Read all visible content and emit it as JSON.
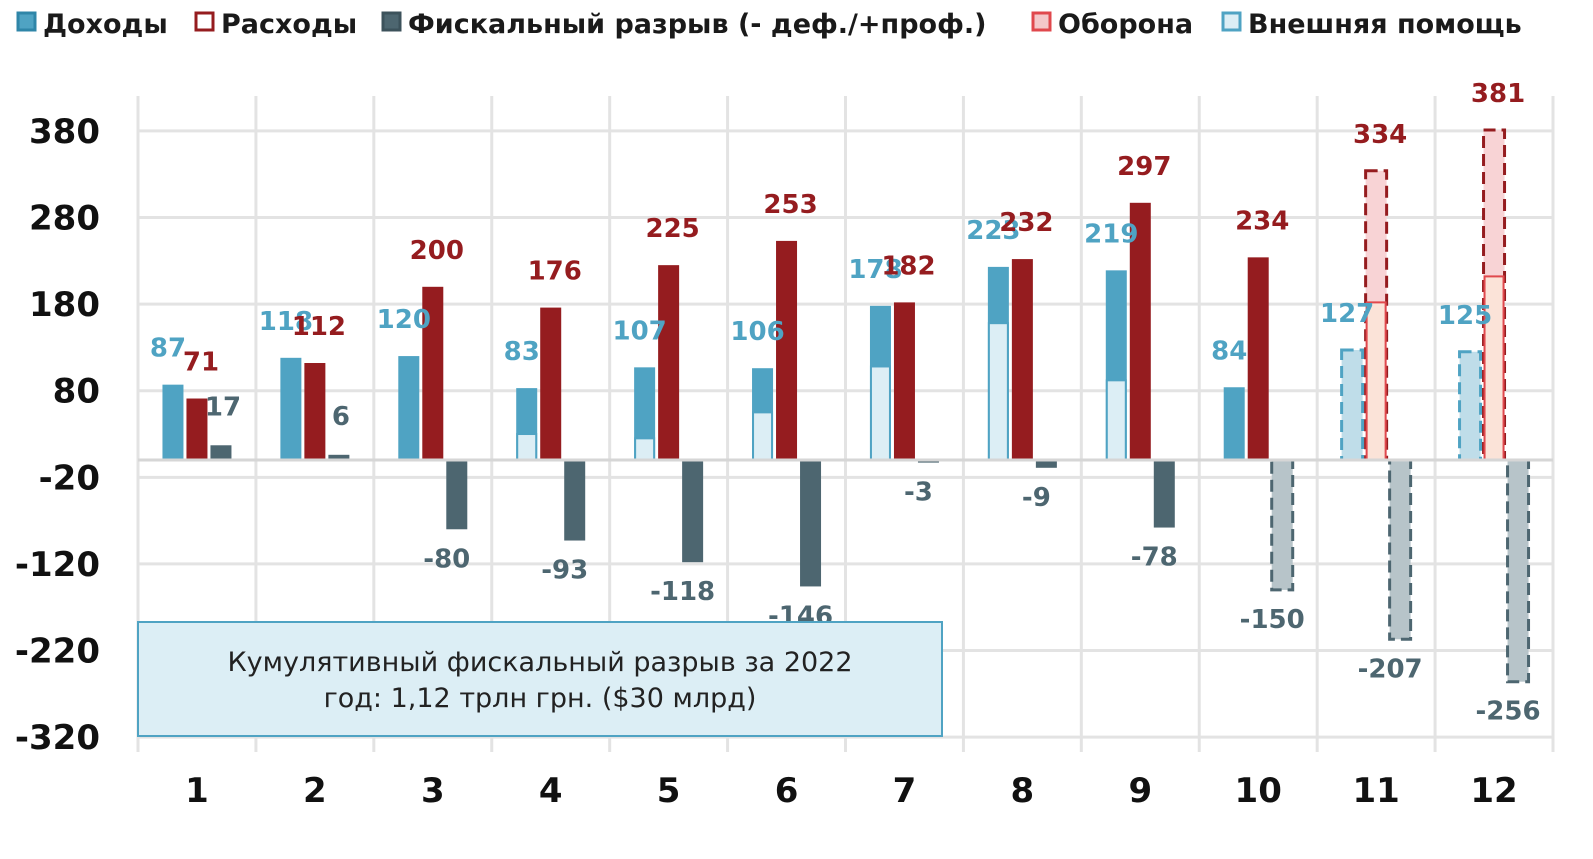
{
  "chart_data": {
    "type": "bar",
    "categories": [
      "1",
      "2",
      "3",
      "4",
      "5",
      "6",
      "7",
      "8",
      "9",
      "10",
      "11",
      "12"
    ],
    "ylim": [
      -320,
      380
    ],
    "yticks": [
      380,
      280,
      180,
      80,
      -20,
      -120,
      -220,
      -320
    ],
    "grid": true,
    "legend_position": "top",
    "series": [
      {
        "name": "Доходы",
        "color": "#4FA3C3",
        "values": [
          87,
          118,
          120,
          83,
          107,
          106,
          178,
          223,
          219,
          84,
          127,
          125
        ],
        "value_labels": [
          "87",
          "118",
          "120",
          "83",
          "107",
          "106",
          "178",
          "223",
          "219",
          "84",
          "127",
          "125"
        ]
      },
      {
        "name": "Расходы",
        "color": "#951C1F",
        "values": [
          71,
          112,
          200,
          176,
          225,
          253,
          182,
          232,
          297,
          234,
          334,
          381
        ],
        "value_labels": [
          "71",
          "112",
          "200",
          "176",
          "225",
          "253",
          "182",
          "232",
          "297",
          "234",
          "334",
          "381"
        ]
      },
      {
        "name": "Фискальный разрыв (- деф./+проф.)",
        "color": "#4D6670",
        "values": [
          17,
          6,
          -80,
          -93,
          -118,
          -146,
          -3,
          -9,
          -78,
          -150,
          -207,
          -256
        ],
        "value_labels": [
          "17",
          "6",
          "-80",
          "-93",
          "-118",
          "-146",
          "-3",
          "-9",
          "-78",
          "-150",
          "-207",
          "-256"
        ]
      },
      {
        "name": "Оборона",
        "color": "#F4C7C9",
        "values": [
          null,
          null,
          null,
          null,
          null,
          null,
          null,
          null,
          null,
          null,
          182,
          212
        ]
      },
      {
        "name": "Внешняя помощь",
        "color": "#DCEEF5",
        "values": [
          null,
          null,
          null,
          30,
          25,
          55,
          108,
          158,
          92,
          null,
          null,
          null
        ]
      }
    ],
    "projected_months": [
      "10",
      "11",
      "12"
    ],
    "annotation": {
      "line1": "Кумулятивный фискальный разрыв за 2022",
      "line2": "год: 1,12 трлн грн. ($30 млрд)"
    }
  }
}
